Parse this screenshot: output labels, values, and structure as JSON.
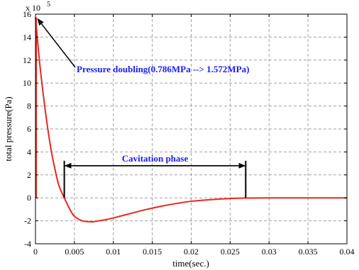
{
  "chart_data": {
    "type": "line",
    "title": "",
    "xlabel": "time(sec.)",
    "ylabel": "total pressure(Pa)",
    "y_multiplier_label": "x 10",
    "y_multiplier_exponent": "5",
    "xlim": [
      0,
      0.04
    ],
    "ylim": [
      -4,
      16
    ],
    "x_ticks": [
      0,
      0.005,
      0.01,
      0.015,
      0.02,
      0.025,
      0.03,
      0.035,
      0.04
    ],
    "x_tick_labels": [
      "0",
      "0.005",
      "0.01",
      "0.015",
      "0.02",
      "0.025",
      "0.03",
      "0.035",
      "0.04"
    ],
    "y_ticks": [
      -4,
      -2,
      0,
      2,
      4,
      6,
      8,
      10,
      12,
      14,
      16
    ],
    "y_tick_labels": [
      "-4",
      "-2",
      "0",
      "2",
      "4",
      "6",
      "8",
      "10",
      "12",
      "14",
      "16"
    ],
    "grid": true,
    "line_color": "#e8281e",
    "series": [
      {
        "x": [
          0,
          0.0005,
          0.001,
          0.0015,
          0.002,
          0.0025,
          0.003,
          0.0037,
          0.0045,
          0.005,
          0.006,
          0.007,
          0.0075,
          0.008,
          0.009,
          0.01,
          0.012,
          0.014,
          0.016,
          0.018,
          0.02,
          0.022,
          0.025,
          0.027,
          0.03,
          0.035,
          0.04
        ],
        "values": [
          15.72,
          12.0,
          9.0,
          6.4,
          4.2,
          2.5,
          1.1,
          0.0,
          -1.1,
          -1.6,
          -2.0,
          -2.08,
          -2.07,
          -2.02,
          -1.9,
          -1.75,
          -1.4,
          -1.05,
          -0.75,
          -0.5,
          -0.3,
          -0.18,
          -0.06,
          -0.02,
          0.0,
          0.0,
          0.0
        ]
      }
    ],
    "annotations": [
      {
        "text": "Pressure doubling(0.786MPa --> 1.572MPa)",
        "arrow_to_x": 0,
        "arrow_to_y": 15.72
      },
      {
        "text": "Cavitation phase",
        "x_start": 0.0037,
        "x_end": 0.027,
        "y": 2.8
      }
    ]
  }
}
